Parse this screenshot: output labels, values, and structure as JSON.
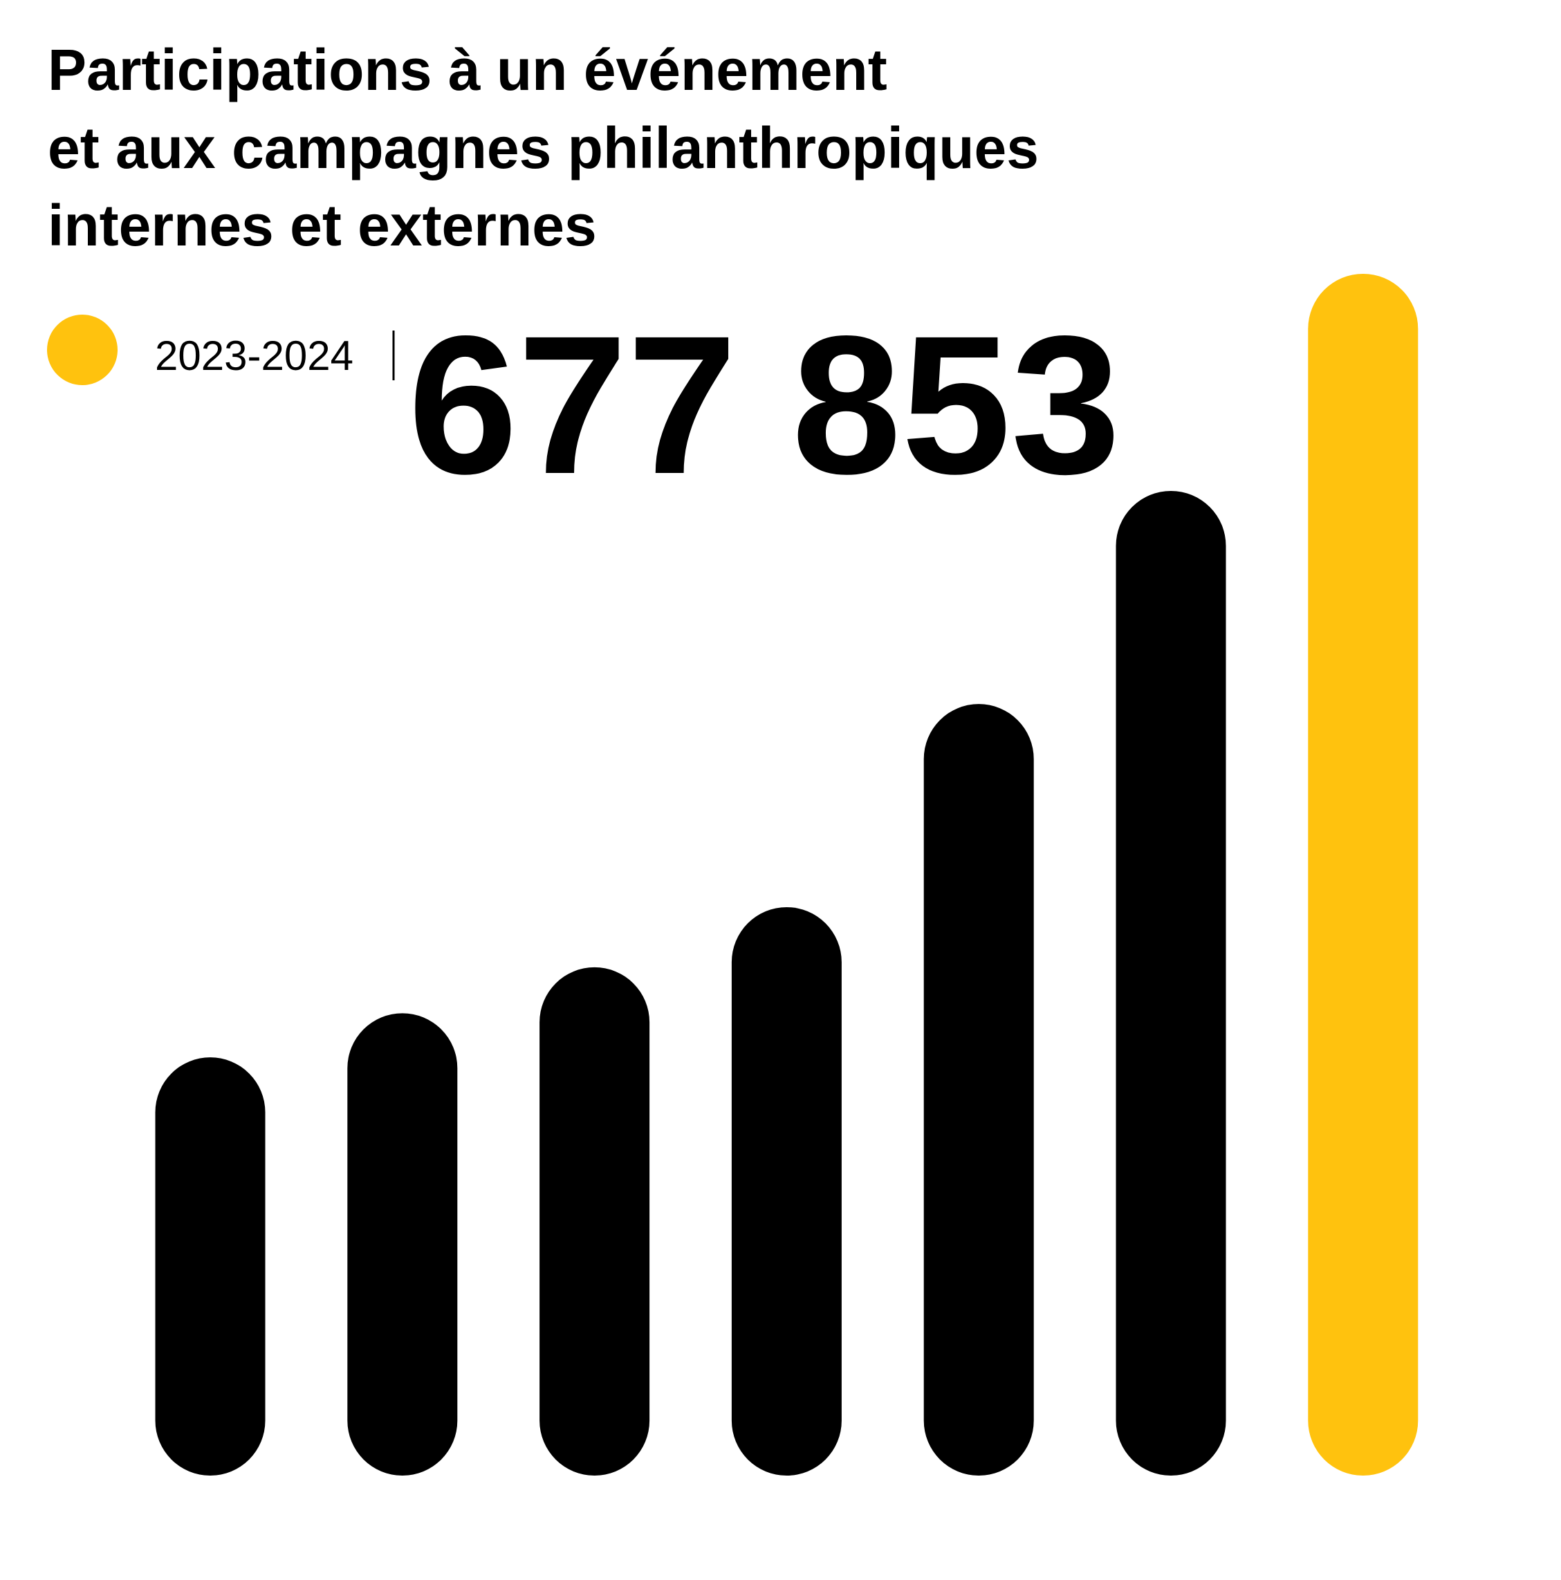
{
  "chart_data": {
    "type": "bar",
    "title": [
      "Participations à un événement",
      "et aux campagnes philanthropiques",
      "internes et externes"
    ],
    "categories": [
      null,
      null,
      null,
      null,
      null,
      null,
      null
    ],
    "values": [
      235900,
      260800,
      286700,
      320600,
      435200,
      555400,
      677853
    ],
    "value_labels": [
      null,
      null,
      null,
      null,
      null,
      null,
      "677 853"
    ],
    "colors": [
      "#000000",
      "#000000",
      "#000000",
      "#000000",
      "#000000",
      "#000000",
      "#ffc20e"
    ],
    "legend": {
      "label": "2023-2024",
      "color": "#ffc20e"
    }
  }
}
